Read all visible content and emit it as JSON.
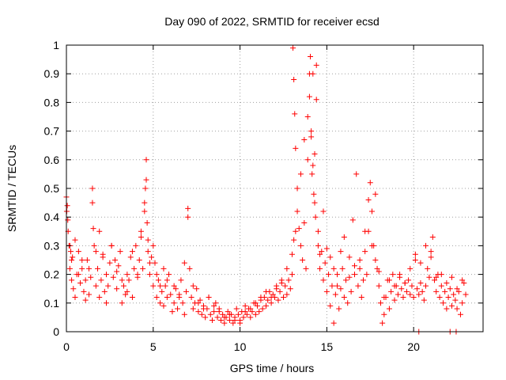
{
  "chart_data": {
    "type": "scatter",
    "title": "Day 090 of 2022, SRMTID for receiver ecsd",
    "xlabel": "GPS time / hours",
    "ylabel": "SRMTID / TECUs",
    "xlim": [
      0,
      24
    ],
    "ylim": [
      0,
      1
    ],
    "x_ticks": [
      0,
      5,
      10,
      15,
      20
    ],
    "x_tick_labels": [
      "0",
      "5",
      "10",
      "15",
      "20"
    ],
    "y_ticks": [
      0,
      0.1,
      0.2,
      0.3,
      0.4,
      0.5,
      0.6,
      0.7,
      0.8,
      0.9,
      1
    ],
    "y_tick_labels": [
      "0",
      "0.1",
      "0.2",
      "0.3",
      "0.4",
      "0.5",
      "0.6",
      "0.7",
      "0.8",
      "0.9",
      "1"
    ],
    "grid": true,
    "marker": "+",
    "color": "#ff0000",
    "series": [
      {
        "name": "SRMTID",
        "x": [
          0.0,
          0.05,
          0.1,
          0.15,
          0.2,
          0.25,
          0.3,
          0.35,
          0.4,
          0.5,
          0.6,
          0.7,
          0.8,
          0.9,
          1.0,
          1.1,
          1.2,
          1.3,
          1.4,
          1.5,
          1.6,
          1.7,
          1.8,
          1.9,
          2.0,
          2.1,
          2.2,
          2.3,
          2.4,
          2.5,
          2.6,
          2.7,
          2.8,
          2.9,
          3.0,
          3.1,
          3.2,
          3.3,
          3.4,
          3.5,
          3.6,
          3.7,
          3.8,
          3.9,
          4.0,
          4.1,
          4.2,
          4.3,
          4.4,
          4.5,
          4.55,
          4.6,
          4.65,
          4.7,
          4.8,
          4.9,
          5.0,
          5.1,
          5.2,
          5.3,
          5.4,
          5.5,
          5.6,
          5.7,
          5.8,
          5.9,
          6.0,
          6.1,
          6.2,
          6.3,
          6.4,
          6.5,
          6.6,
          6.7,
          6.8,
          6.9,
          7.0,
          7.1,
          7.2,
          7.3,
          7.4,
          7.5,
          7.6,
          7.7,
          7.8,
          7.9,
          8.0,
          8.1,
          8.2,
          8.3,
          8.4,
          8.5,
          8.6,
          8.7,
          8.8,
          8.9,
          9.0,
          9.1,
          9.2,
          9.3,
          9.4,
          9.5,
          9.6,
          9.7,
          9.8,
          9.9,
          10.0,
          10.1,
          10.2,
          10.3,
          10.4,
          10.5,
          10.6,
          10.7,
          10.8,
          10.9,
          11.0,
          11.1,
          11.2,
          11.3,
          11.4,
          11.5,
          11.6,
          11.7,
          11.8,
          11.9,
          12.0,
          12.1,
          12.2,
          12.3,
          12.4,
          12.5,
          12.6,
          12.7,
          12.8,
          12.9,
          13.0,
          13.05,
          13.1,
          13.15,
          13.2,
          13.3,
          13.4,
          13.5,
          13.6,
          13.7,
          13.8,
          13.9,
          14.0,
          14.05,
          14.1,
          14.15,
          14.2,
          14.25,
          14.3,
          14.35,
          14.4,
          14.5,
          14.6,
          14.7,
          14.8,
          14.9,
          15.0,
          15.1,
          15.2,
          15.3,
          15.4,
          15.5,
          15.6,
          15.7,
          15.8,
          15.9,
          16.0,
          16.1,
          16.2,
          16.3,
          16.4,
          16.5,
          16.6,
          16.7,
          16.8,
          16.9,
          17.0,
          17.1,
          17.2,
          17.3,
          17.4,
          17.5,
          17.6,
          17.7,
          17.8,
          17.9,
          18.0,
          18.1,
          18.2,
          18.3,
          18.4,
          18.5,
          18.6,
          18.7,
          18.8,
          18.9,
          19.0,
          19.1,
          19.2,
          19.3,
          19.4,
          19.5,
          19.6,
          19.7,
          19.8,
          19.9,
          20.0,
          20.1,
          20.2,
          20.3,
          20.4,
          20.5,
          20.6,
          20.7,
          20.8,
          20.9,
          21.0,
          21.1,
          21.2,
          21.3,
          21.4,
          21.5,
          21.6,
          21.7,
          21.8,
          21.9,
          22.0,
          22.1,
          22.2,
          22.3,
          22.4,
          22.5,
          22.6,
          22.7,
          22.8,
          22.9,
          23.0,
          0.02,
          0.08,
          0.2,
          0.3,
          0.5,
          0.7,
          0.9,
          1.1,
          1.3,
          1.5,
          1.55,
          1.7,
          1.9,
          2.1,
          2.3,
          2.6,
          2.9,
          3.2,
          3.5,
          3.8,
          4.1,
          4.3,
          4.5,
          4.6,
          4.7,
          4.8,
          5.0,
          5.2,
          5.4,
          5.6,
          5.8,
          6.2,
          6.5,
          6.8,
          7.0,
          7.3,
          7.6,
          7.9,
          8.2,
          8.5,
          8.8,
          9.1,
          9.4,
          9.7,
          10.0,
          10.3,
          10.6,
          10.9,
          11.2,
          11.5,
          11.8,
          12.1,
          12.4,
          12.7,
          13.0,
          13.1,
          13.2,
          13.3,
          13.5,
          13.7,
          13.9,
          14.0,
          14.1,
          14.2,
          14.3,
          14.4,
          14.5,
          14.6,
          14.8,
          15.0,
          15.2,
          15.4,
          15.6,
          15.8,
          16.0,
          16.3,
          16.6,
          16.9,
          17.2,
          17.4,
          17.6,
          17.8,
          18.0,
          18.3,
          18.6,
          18.9,
          19.2,
          19.5,
          19.8,
          20.1,
          20.4,
          20.7,
          21.0,
          21.3,
          21.6,
          21.9,
          22.2,
          22.5,
          22.8,
          20.3,
          22.1,
          22.45
        ],
        "y": [
          0.47,
          0.44,
          0.35,
          0.3,
          0.22,
          0.28,
          0.18,
          0.26,
          0.15,
          0.12,
          0.2,
          0.28,
          0.17,
          0.22,
          0.14,
          0.18,
          0.25,
          0.13,
          0.19,
          0.5,
          0.3,
          0.16,
          0.22,
          0.12,
          0.18,
          0.27,
          0.14,
          0.2,
          0.16,
          0.24,
          0.3,
          0.19,
          0.25,
          0.15,
          0.23,
          0.28,
          0.1,
          0.16,
          0.13,
          0.2,
          0.18,
          0.26,
          0.12,
          0.22,
          0.3,
          0.19,
          0.25,
          0.33,
          0.22,
          0.42,
          0.5,
          0.6,
          0.38,
          0.28,
          0.2,
          0.26,
          0.16,
          0.24,
          0.12,
          0.18,
          0.1,
          0.14,
          0.09,
          0.16,
          0.12,
          0.2,
          0.13,
          0.07,
          0.1,
          0.15,
          0.08,
          0.12,
          0.18,
          0.1,
          0.06,
          0.14,
          0.4,
          0.22,
          0.12,
          0.08,
          0.1,
          0.15,
          0.07,
          0.11,
          0.06,
          0.09,
          0.05,
          0.08,
          0.12,
          0.06,
          0.04,
          0.07,
          0.1,
          0.05,
          0.08,
          0.04,
          0.06,
          0.03,
          0.05,
          0.07,
          0.04,
          0.06,
          0.03,
          0.05,
          0.08,
          0.06,
          0.04,
          0.07,
          0.05,
          0.09,
          0.06,
          0.08,
          0.05,
          0.07,
          0.1,
          0.06,
          0.09,
          0.07,
          0.11,
          0.08,
          0.12,
          0.09,
          0.11,
          0.14,
          0.1,
          0.13,
          0.12,
          0.15,
          0.11,
          0.14,
          0.17,
          0.12,
          0.16,
          0.13,
          0.18,
          0.15,
          0.2,
          0.99,
          0.88,
          0.76,
          0.64,
          0.5,
          0.36,
          0.3,
          0.25,
          0.38,
          0.22,
          0.6,
          0.82,
          0.96,
          0.7,
          0.55,
          0.9,
          0.48,
          0.62,
          0.4,
          0.93,
          0.3,
          0.22,
          0.28,
          0.18,
          0.24,
          0.14,
          0.2,
          0.09,
          0.16,
          0.03,
          0.13,
          0.2,
          0.08,
          0.15,
          0.22,
          0.12,
          0.18,
          0.1,
          0.26,
          0.14,
          0.39,
          0.2,
          0.55,
          0.16,
          0.22,
          0.12,
          0.18,
          0.28,
          0.2,
          0.35,
          0.52,
          0.42,
          0.3,
          0.48,
          0.22,
          0.16,
          0.1,
          0.03,
          0.06,
          0.12,
          0.18,
          0.08,
          0.14,
          0.2,
          0.11,
          0.16,
          0.13,
          0.19,
          0.15,
          0.12,
          0.17,
          0.14,
          0.18,
          0.13,
          0.16,
          0.12,
          0.25,
          0.15,
          0.13,
          0.17,
          0.14,
          0.11,
          0.16,
          0.22,
          0.19,
          0.28,
          0.33,
          0.18,
          0.14,
          0.2,
          0.12,
          0.16,
          0.1,
          0.14,
          0.08,
          0.12,
          0.15,
          0.09,
          0.13,
          0.11,
          0.08,
          0.14,
          0.06,
          0.1,
          0.17,
          0.13,
          0.42,
          0.39,
          0.3,
          0.25,
          0.32,
          0.2,
          0.25,
          0.11,
          0.22,
          0.45,
          0.36,
          0.28,
          0.35,
          0.26,
          0.1,
          0.3,
          0.21,
          0.18,
          0.14,
          0.28,
          0.2,
          0.35,
          0.45,
          0.53,
          0.32,
          0.24,
          0.3,
          0.2,
          0.16,
          0.22,
          0.18,
          0.16,
          0.13,
          0.24,
          0.43,
          0.16,
          0.1,
          0.08,
          0.12,
          0.09,
          0.07,
          0.05,
          0.06,
          0.04,
          0.03,
          0.07,
          0.08,
          0.1,
          0.12,
          0.14,
          0.12,
          0.16,
          0.18,
          0.22,
          0.27,
          0.32,
          0.35,
          0.42,
          0.55,
          0.67,
          0.75,
          0.9,
          0.68,
          0.58,
          0.45,
          0.81,
          0.35,
          0.27,
          0.42,
          0.29,
          0.26,
          0.22,
          0.16,
          0.28,
          0.33,
          0.19,
          0.23,
          0.25,
          0.35,
          0.46,
          0.3,
          0.25,
          0.21,
          0.12,
          0.18,
          0.16,
          0.2,
          0.17,
          0.22,
          0.27,
          0.24,
          0.3,
          0.26,
          0.19,
          0.2,
          0.17,
          0.19,
          0.15,
          0.18,
          0,
          0,
          0
        ]
      }
    ]
  }
}
